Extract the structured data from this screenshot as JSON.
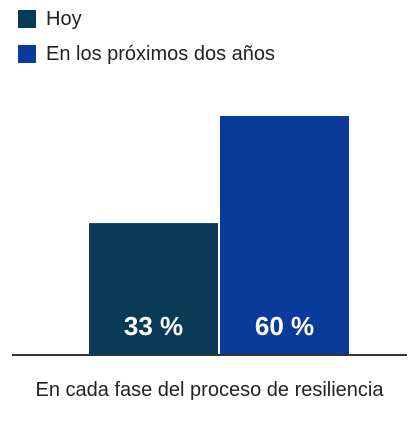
{
  "chart_data": {
    "type": "bar",
    "categories": [
      "En cada fase del proceso de resiliencia"
    ],
    "series": [
      {
        "name": "Hoy",
        "values": [
          33
        ],
        "color": "#0b3a57",
        "label": "33 %"
      },
      {
        "name": "En los próximos dos años",
        "values": [
          60
        ],
        "color": "#0a3a9a",
        "label": "60 %"
      }
    ],
    "xlabel": "En cada fase del proceso de resiliencia",
    "ylabel": "",
    "ylim": [
      0,
      60
    ],
    "grid": false,
    "legend": "top-left"
  }
}
